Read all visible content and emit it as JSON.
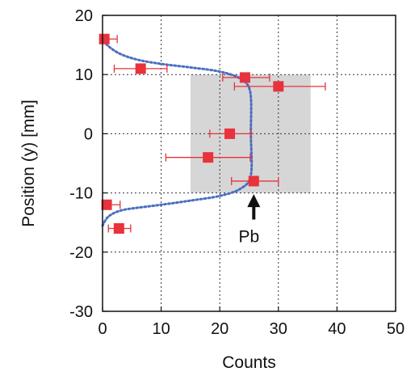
{
  "chart_data": {
    "type": "scatter",
    "title": "",
    "xlabel": "Counts",
    "ylabel": "Position (y) [mm]",
    "xlim": [
      0,
      50
    ],
    "ylim": [
      -30,
      20
    ],
    "x_ticks": [
      0,
      10,
      20,
      30,
      40,
      50
    ],
    "y_ticks": [
      -30,
      -20,
      -10,
      0,
      10,
      20
    ],
    "grid": true,
    "grid_style": "dotted",
    "shaded_region": {
      "x_range": [
        15,
        35.5
      ],
      "y_range": [
        -10,
        10
      ],
      "color": "#d6d6d6"
    },
    "series": [
      {
        "marker": "square",
        "color": "#e8323c",
        "points": [
          {
            "x": 0.3,
            "y": 16,
            "x_err": [
              0,
              2.5
            ]
          },
          {
            "x": 6.5,
            "y": 11,
            "x_err": [
              2,
              11
            ]
          },
          {
            "x": 24.3,
            "y": 9.5,
            "x_err": [
              20.5,
              28.5
            ]
          },
          {
            "x": 30,
            "y": 8,
            "x_err": [
              22.5,
              38
            ]
          },
          {
            "x": 21.7,
            "y": 0,
            "x_err": [
              18.3,
              25.3
            ]
          },
          {
            "x": 18,
            "y": -4,
            "x_err": [
              10.8,
              25.2
            ]
          },
          {
            "x": 25.8,
            "y": -8,
            "x_err": [
              22,
              30
            ]
          },
          {
            "x": 0.7,
            "y": -12,
            "x_err": [
              0,
              3
            ]
          },
          {
            "x": 2.8,
            "y": -16,
            "x_err": [
              1,
              4.8
            ]
          }
        ]
      }
    ],
    "fit_curve": {
      "style": "dotted",
      "color": "#4a6fc0",
      "x": [
        0,
        1,
        3,
        6,
        10,
        15,
        20,
        23.5,
        25.3,
        25.3,
        25.2,
        23.5,
        20,
        15,
        10,
        6,
        3,
        1,
        0
      ],
      "y": [
        -15.5,
        -14,
        -13,
        -12.5,
        -12,
        -11.3,
        -10.5,
        -9.3,
        -7,
        0,
        7,
        9.3,
        10.5,
        11.2,
        11.8,
        12.5,
        13.5,
        14.8,
        16
      ]
    },
    "annotations": [
      {
        "text": "Pb",
        "x": 25.8,
        "y": -17.5,
        "arrow_to": {
          "x": 25.8,
          "y": -10.2
        }
      }
    ]
  }
}
